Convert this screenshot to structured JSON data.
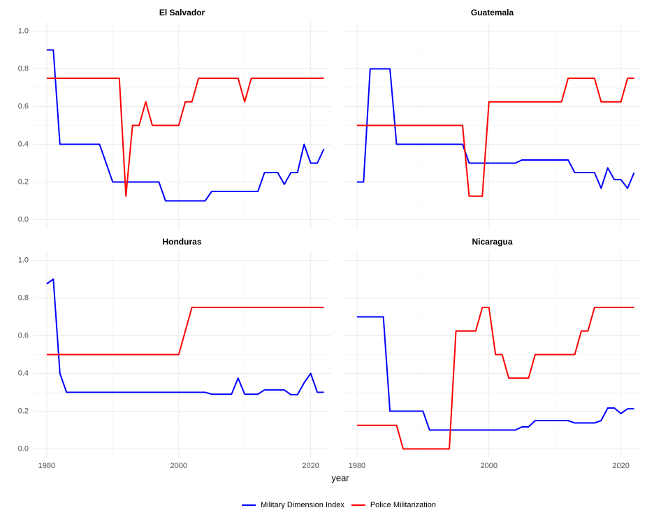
{
  "xlabel": "year",
  "chart_data": [
    {
      "type": "line",
      "title": "El Salvador",
      "x": [
        1980,
        1981,
        1982,
        1983,
        1984,
        1985,
        1986,
        1987,
        1988,
        1989,
        1990,
        1991,
        1992,
        1993,
        1994,
        1995,
        1996,
        1997,
        1998,
        1999,
        2000,
        2001,
        2002,
        2003,
        2004,
        2005,
        2006,
        2007,
        2008,
        2009,
        2010,
        2011,
        2012,
        2013,
        2014,
        2015,
        2016,
        2017,
        2018,
        2019,
        2020,
        2021,
        2022
      ],
      "series": [
        {
          "name": "Military Dimension Index",
          "color": "#0000ff",
          "values": [
            0.9,
            0.9,
            0.4,
            0.4,
            0.4,
            0.4,
            0.4,
            0.4,
            0.4,
            0.3,
            0.2,
            0.2,
            0.2,
            0.2,
            0.2,
            0.2,
            0.2,
            0.2,
            0.1,
            0.1,
            0.1,
            0.1,
            0.1,
            0.1,
            0.1,
            0.15,
            0.15,
            0.15,
            0.15,
            0.15,
            0.15,
            0.15,
            0.15,
            0.25,
            0.25,
            0.25,
            0.1875,
            0.25,
            0.25,
            0.4,
            0.3,
            0.3,
            0.375
          ]
        },
        {
          "name": "Police Militarization",
          "color": "#ff0000",
          "values": [
            0.75,
            0.75,
            0.75,
            0.75,
            0.75,
            0.75,
            0.75,
            0.75,
            0.75,
            0.75,
            0.75,
            0.75,
            0.125,
            0.5,
            0.5,
            0.625,
            0.5,
            0.5,
            0.5,
            0.5,
            0.5,
            0.625,
            0.625,
            0.75,
            0.75,
            0.75,
            0.75,
            0.75,
            0.75,
            0.75,
            0.625,
            0.75,
            0.75,
            0.75,
            0.75,
            0.75,
            0.75,
            0.75,
            0.75,
            0.75,
            0.75,
            0.75,
            0.75
          ]
        }
      ],
      "xlim": [
        1978,
        2023
      ],
      "ylim": [
        -0.05,
        1.05
      ],
      "xticks": [
        1980,
        2000,
        2020
      ],
      "yticks": [
        {
          "value": 0,
          "label": "0.0"
        },
        {
          "value": 0.2,
          "label": "0.2"
        },
        {
          "value": 0.4,
          "label": "0.4"
        },
        {
          "value": 0.6,
          "label": "0.6"
        },
        {
          "value": 0.8,
          "label": "0.8"
        },
        {
          "value": 1,
          "label": "1.0"
        }
      ]
    },
    {
      "type": "line",
      "title": "Guatemala",
      "x": [
        1980,
        1981,
        1982,
        1983,
        1984,
        1985,
        1986,
        1987,
        1988,
        1989,
        1990,
        1991,
        1992,
        1993,
        1994,
        1995,
        1996,
        1997,
        1998,
        1999,
        2000,
        2001,
        2002,
        2003,
        2004,
        2005,
        2006,
        2007,
        2008,
        2009,
        2010,
        2011,
        2012,
        2013,
        2014,
        2015,
        2016,
        2017,
        2018,
        2019,
        2020,
        2021,
        2022
      ],
      "series": [
        {
          "name": "Military Dimension Index",
          "color": "#0000ff",
          "values": [
            0.2,
            0.2,
            0.8,
            0.8,
            0.8,
            0.8,
            0.4,
            0.4,
            0.4,
            0.4,
            0.4,
            0.4,
            0.4,
            0.4,
            0.4,
            0.4,
            0.4,
            0.3,
            0.3,
            0.3,
            0.3,
            0.3,
            0.3,
            0.3,
            0.3,
            0.3167,
            0.3167,
            0.3167,
            0.3167,
            0.3167,
            0.3167,
            0.3167,
            0.3167,
            0.25,
            0.25,
            0.25,
            0.25,
            0.1667,
            0.275,
            0.2125,
            0.2125,
            0.1667,
            0.25
          ]
        },
        {
          "name": "Police Militarization",
          "color": "#ff0000",
          "values": [
            0.5,
            0.5,
            0.5,
            0.5,
            0.5,
            0.5,
            0.5,
            0.5,
            0.5,
            0.5,
            0.5,
            0.5,
            0.5,
            0.5,
            0.5,
            0.5,
            0.5,
            0.125,
            0.125,
            0.125,
            0.625,
            0.625,
            0.625,
            0.625,
            0.625,
            0.625,
            0.625,
            0.625,
            0.625,
            0.625,
            0.625,
            0.625,
            0.75,
            0.75,
            0.75,
            0.75,
            0.75,
            0.625,
            0.625,
            0.625,
            0.625,
            0.75,
            0.75
          ]
        }
      ],
      "xlim": [
        1978,
        2023
      ],
      "ylim": [
        -0.05,
        1.05
      ],
      "xticks": [
        1980,
        2000,
        2020
      ],
      "yticks": [
        0,
        0.2,
        0.4,
        0.6,
        0.8,
        1
      ]
    },
    {
      "type": "line",
      "title": "Honduras",
      "x": [
        1980,
        1981,
        1982,
        1983,
        1984,
        1985,
        1986,
        1987,
        1988,
        1989,
        1990,
        1991,
        1992,
        1993,
        1994,
        1995,
        1996,
        1997,
        1998,
        1999,
        2000,
        2001,
        2002,
        2003,
        2004,
        2005,
        2006,
        2007,
        2008,
        2009,
        2010,
        2011,
        2012,
        2013,
        2014,
        2015,
        2016,
        2017,
        2018,
        2019,
        2020,
        2021,
        2022
      ],
      "series": [
        {
          "name": "Military Dimension Index",
          "color": "#0000ff",
          "values": [
            0.875,
            0.9,
            0.4,
            0.3,
            0.3,
            0.3,
            0.3,
            0.3,
            0.3,
            0.3,
            0.3,
            0.3,
            0.3,
            0.3,
            0.3,
            0.3,
            0.3,
            0.3,
            0.3,
            0.3,
            0.3,
            0.3,
            0.3,
            0.3,
            0.3,
            0.29,
            0.29,
            0.29,
            0.29,
            0.375,
            0.29,
            0.29,
            0.29,
            0.3125,
            0.3125,
            0.3125,
            0.3125,
            0.2875,
            0.2875,
            0.35,
            0.4,
            0.3,
            0.3
          ]
        },
        {
          "name": "Police Militarization",
          "color": "#ff0000",
          "values": [
            0.5,
            0.5,
            0.5,
            0.5,
            0.5,
            0.5,
            0.5,
            0.5,
            0.5,
            0.5,
            0.5,
            0.5,
            0.5,
            0.5,
            0.5,
            0.5,
            0.5,
            0.5,
            0.5,
            0.5,
            0.5,
            0.625,
            0.75,
            0.75,
            0.75,
            0.75,
            0.75,
            0.75,
            0.75,
            0.75,
            0.75,
            0.75,
            0.75,
            0.75,
            0.75,
            0.75,
            0.75,
            0.75,
            0.75,
            0.75,
            0.75,
            0.75,
            0.75
          ]
        }
      ],
      "xlim": [
        1978,
        2023
      ],
      "ylim": [
        -0.05,
        1.05
      ],
      "xticks": [
        1980,
        2000,
        2020
      ],
      "yticks": [
        {
          "value": 0,
          "label": "0.0"
        },
        {
          "value": 0.2,
          "label": "0.2"
        },
        {
          "value": 0.4,
          "label": "0.4"
        },
        {
          "value": 0.6,
          "label": "0.6"
        },
        {
          "value": 0.8,
          "label": "0.8"
        },
        {
          "value": 1,
          "label": "1.0"
        }
      ]
    },
    {
      "type": "line",
      "title": "Nicaragua",
      "x": [
        1980,
        1981,
        1982,
        1983,
        1984,
        1985,
        1986,
        1987,
        1988,
        1989,
        1990,
        1991,
        1992,
        1993,
        1994,
        1995,
        1996,
        1997,
        1998,
        1999,
        2000,
        2001,
        2002,
        2003,
        2004,
        2005,
        2006,
        2007,
        2008,
        2009,
        2010,
        2011,
        2012,
        2013,
        2014,
        2015,
        2016,
        2017,
        2018,
        2019,
        2020,
        2021,
        2022
      ],
      "series": [
        {
          "name": "Military Dimension Index",
          "color": "#0000ff",
          "values": [
            0.7,
            0.7,
            0.7,
            0.7,
            0.7,
            0.2,
            0.2,
            0.2,
            0.2,
            0.2,
            0.2,
            0.1,
            0.1,
            0.1,
            0.1,
            0.1,
            0.1,
            0.1,
            0.1,
            0.1,
            0.1,
            0.1,
            0.1,
            0.1,
            0.1,
            0.1167,
            0.1167,
            0.15,
            0.15,
            0.15,
            0.15,
            0.15,
            0.15,
            0.1375,
            0.1375,
            0.1375,
            0.1375,
            0.15,
            0.2167,
            0.2167,
            0.1875,
            0.2125,
            0.2125
          ]
        },
        {
          "name": "Police Militarization",
          "color": "#ff0000",
          "values": [
            0.125,
            0.125,
            0.125,
            0.125,
            0.125,
            0.125,
            0.125,
            0,
            0,
            0,
            0,
            0,
            0,
            0,
            0,
            0.625,
            0.625,
            0.625,
            0.625,
            0.75,
            0.75,
            0.5,
            0.5,
            0.375,
            0.375,
            0.375,
            0.375,
            0.5,
            0.5,
            0.5,
            0.5,
            0.5,
            0.5,
            0.5,
            0.625,
            0.625,
            0.75,
            0.75,
            0.75,
            0.75,
            0.75,
            0.75,
            0.75
          ]
        }
      ],
      "xlim": [
        1978,
        2023
      ],
      "ylim": [
        -0.05,
        1.05
      ],
      "xticks": [
        1980,
        2000,
        2020
      ],
      "yticks": [
        0,
        0.2,
        0.4,
        0.6,
        0.8,
        1
      ]
    }
  ]
}
